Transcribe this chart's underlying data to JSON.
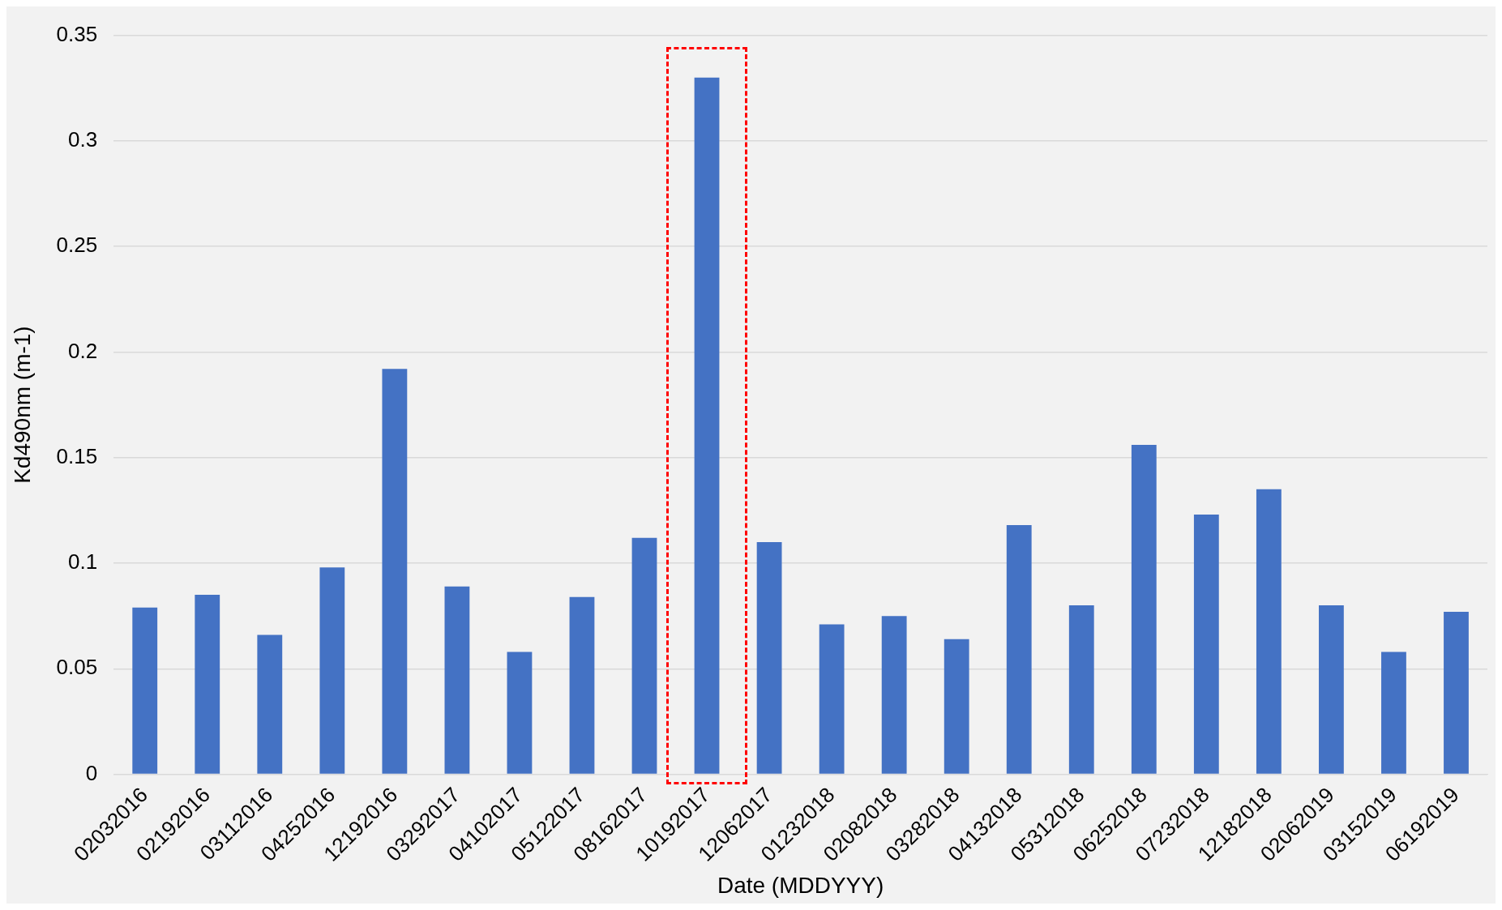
{
  "chart_data": {
    "type": "bar",
    "xlabel": "Date (MDDYYY)",
    "ylabel": "Kd490nm (m-1)",
    "categories": [
      "02032016",
      "02192016",
      "03112016",
      "04252016",
      "12192016",
      "03292017",
      "04102017",
      "05122017",
      "08162017",
      "10192017",
      "12062017",
      "01232018",
      "02082018",
      "03282018",
      "04132018",
      "05312018",
      "06252018",
      "07232018",
      "12182018",
      "02062019",
      "03152019",
      "06192019"
    ],
    "values": [
      0.079,
      0.085,
      0.066,
      0.098,
      0.192,
      0.089,
      0.058,
      0.084,
      0.112,
      0.33,
      0.11,
      0.071,
      0.075,
      0.064,
      0.118,
      0.08,
      0.156,
      0.123,
      0.135,
      0.08,
      0.058,
      0.077
    ],
    "color": "#4472c4",
    "ylim": [
      0,
      0.35
    ],
    "yticks": [
      {
        "value": 0,
        "label": "0"
      },
      {
        "value": 0.05,
        "label": "0.05"
      },
      {
        "value": 0.1,
        "label": "0.1"
      },
      {
        "value": 0.15,
        "label": "0.15"
      },
      {
        "value": 0.2,
        "label": "0.2"
      },
      {
        "value": 0.25,
        "label": "0.25"
      },
      {
        "value": 0.3,
        "label": "0.3"
      },
      {
        "value": 0.35,
        "label": "0.35"
      }
    ],
    "grid": "y",
    "legend": false
  }
}
